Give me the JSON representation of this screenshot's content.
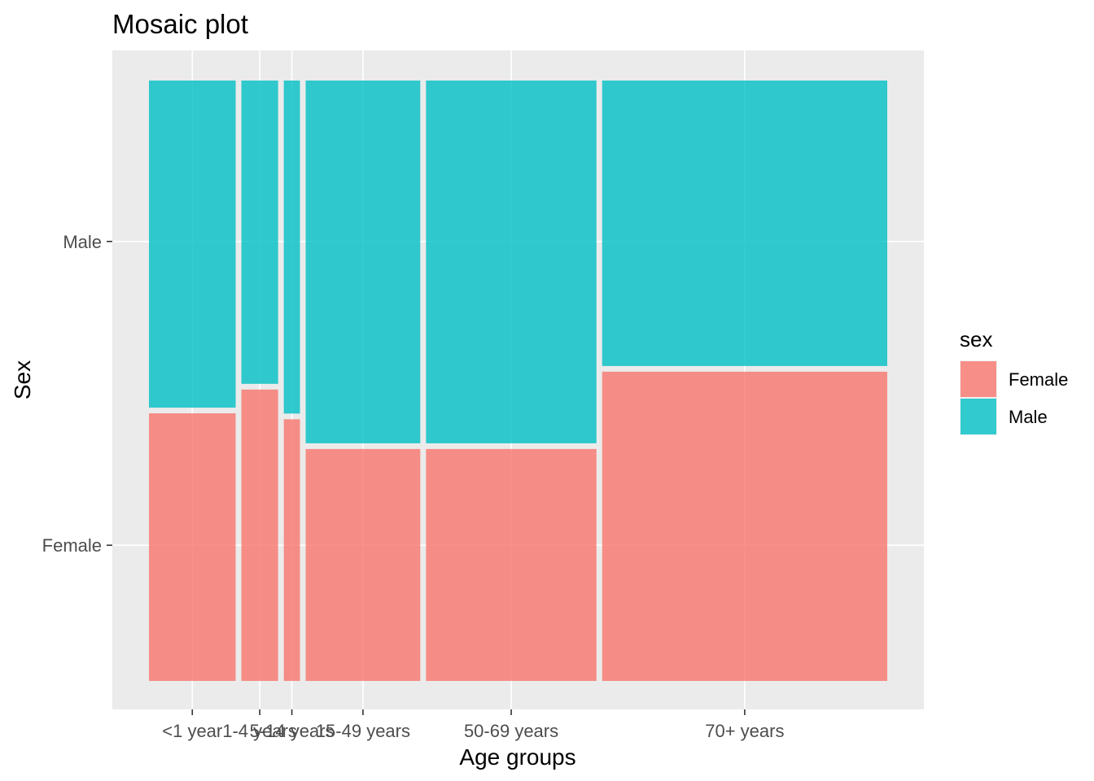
{
  "chart_data": {
    "type": "mosaic",
    "title": "Mosaic plot",
    "xlabel": "Age groups",
    "ylabel": "Sex",
    "categories": [
      "<1 year",
      "1-4 years",
      "5-14 years",
      "15-49 years",
      "50-69 years",
      "70+ years"
    ],
    "category_share": [
      0.118,
      0.05,
      0.022,
      0.156,
      0.232,
      0.388
    ],
    "y_categories": [
      "Female",
      "Male"
    ],
    "series": [
      {
        "name": "Female",
        "values": [
          0.45,
          0.49,
          0.44,
          0.39,
          0.39,
          0.52
        ]
      },
      {
        "name": "Male",
        "values": [
          0.55,
          0.51,
          0.56,
          0.61,
          0.61,
          0.48
        ]
      }
    ],
    "legend": {
      "title": "sex",
      "position": "right",
      "entries": [
        "Female",
        "Male"
      ]
    },
    "grid": true,
    "colors": {
      "Female": "#F8766D",
      "Male": "#00BFC4",
      "panel": "#EBEBEB",
      "grid": "#FFFFFF"
    }
  }
}
